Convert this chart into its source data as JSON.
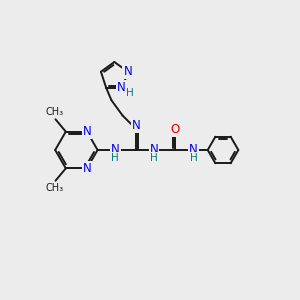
{
  "background_color": "#ececec",
  "bond_color": "#1a1a1a",
  "bond_width": 1.4,
  "atom_colors": {
    "N": "#0000ee",
    "O": "#dd0000",
    "C": "#1a1a1a",
    "H": "#008080"
  },
  "font_size_N": 8.5,
  "font_size_O": 8.5,
  "font_size_H": 7.5,
  "font_size_methyl": 7.0
}
